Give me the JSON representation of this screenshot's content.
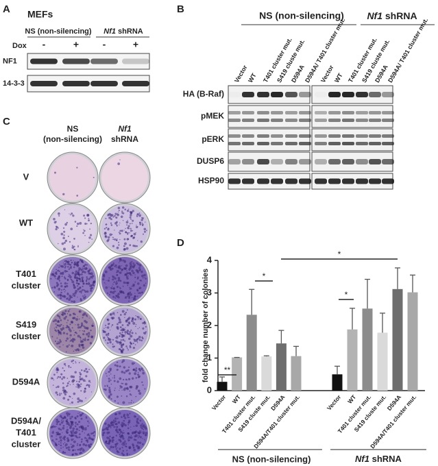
{
  "panel_a": {
    "label": "A",
    "title": "MEFs",
    "groups": [
      "NS (non-silencing)",
      {
        "gene": "Nf1",
        "rest": " shRNA"
      }
    ],
    "dox_label": "Dox",
    "dox": [
      "-",
      "+",
      "-",
      "+"
    ],
    "rows": [
      "NF1",
      "14-3-3"
    ]
  },
  "panel_b": {
    "label": "B",
    "groups": [
      "NS (non-silencing)",
      {
        "gene": "Nf1",
        "rest": " shRNA"
      }
    ],
    "lanes": [
      "Vector",
      "WT",
      "T401 cluster mut.",
      "S419 cluste mut.",
      "D594A",
      "D594A/ T401 cluster mut.",
      "Vector",
      "WT",
      "T401 cluster mut.",
      "S419 cluste mut.",
      "D594A",
      "D594A/ T401 cluster mut."
    ],
    "rows": [
      "HA (B-Raf)",
      "pMEK",
      "pERK",
      "DUSP6",
      "HSP90"
    ]
  },
  "panel_c": {
    "label": "C",
    "columns": [
      [
        "NS",
        "(non-silencing)"
      ],
      [
        {
          "gene": "Nf1"
        },
        "shRNA"
      ]
    ],
    "rows": [
      [
        "V"
      ],
      [
        "WT"
      ],
      [
        "T401",
        "cluster"
      ],
      [
        "S419",
        "cluster"
      ],
      [
        "D594A"
      ],
      [
        "D594A/",
        "T401",
        "cluster"
      ]
    ]
  },
  "chart_data": {
    "type": "bar",
    "panel_label": "D",
    "y_label": "fold change number of colonies",
    "categories": [
      "Vector",
      "WT",
      "T401 cluster mut.",
      "S419 cluste mut.",
      "D594A",
      "D594A/T401 cluster mut.",
      "Vector",
      "WT",
      "T401 cluster mut.",
      "S419 cluste mut.",
      "D594A",
      "D594A/T401 cluster mut."
    ],
    "values": [
      0.27,
      1.02,
      2.33,
      1.05,
      1.45,
      1.06,
      0.5,
      1.88,
      2.52,
      1.78,
      3.12,
      3.02
    ],
    "errors": [
      0.15,
      0.0,
      0.78,
      0.02,
      0.4,
      0.3,
      0.25,
      0.65,
      0.9,
      0.6,
      0.65,
      0.53
    ],
    "colors": [
      "#111111",
      "#b3b3b3",
      "#8c8c8c",
      "#dadada",
      "#6e6e6e",
      "#a8a8a8",
      "#111111",
      "#b3b3b3",
      "#8c8c8c",
      "#dadada",
      "#6e6e6e",
      "#a8a8a8"
    ],
    "groups": [
      "NS (non-silencing)",
      {
        "gene": "Nf1",
        "rest": " shRNA"
      }
    ],
    "annotations": [
      "**",
      "*",
      "*",
      "*"
    ],
    "ylim": [
      0,
      4
    ],
    "yticks": [
      0,
      1,
      2,
      3,
      4
    ]
  }
}
